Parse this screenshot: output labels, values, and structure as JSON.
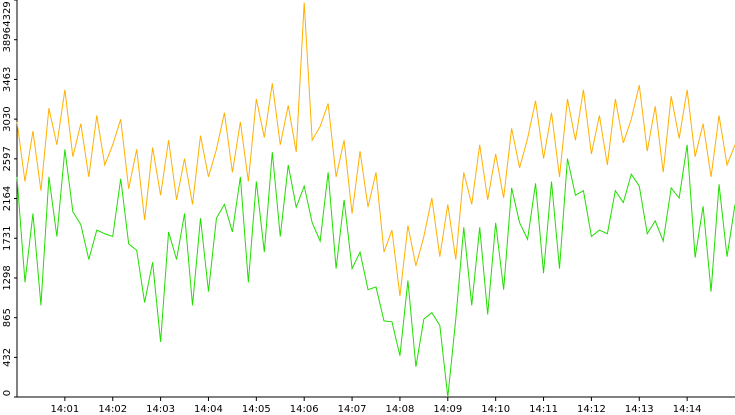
{
  "chart_data": {
    "type": "line",
    "categories": [
      null,
      null,
      null,
      null,
      null,
      null,
      "14:01",
      null,
      null,
      null,
      null,
      null,
      "14:02",
      null,
      null,
      null,
      null,
      null,
      "14:03",
      null,
      null,
      null,
      null,
      null,
      "14:04",
      null,
      null,
      null,
      null,
      null,
      "14:05",
      null,
      null,
      null,
      null,
      null,
      "14:06",
      null,
      null,
      null,
      null,
      null,
      "14:07",
      null,
      null,
      null,
      null,
      null,
      "14:08",
      null,
      null,
      null,
      null,
      null,
      "14:09",
      null,
      null,
      null,
      null,
      null,
      "14:10",
      null,
      null,
      null,
      null,
      null,
      "14:11",
      null,
      null,
      null,
      null,
      null,
      "14:12",
      null,
      null,
      null,
      null,
      null,
      "14:13",
      null,
      null,
      null,
      null,
      null,
      "14:14",
      null,
      null,
      null,
      null,
      null,
      null
    ],
    "series": [
      {
        "color": "#ffb000",
        "values": [
          3000,
          2350,
          2900,
          2250,
          3150,
          2750,
          3350,
          2620,
          2980,
          2400,
          3070,
          2530,
          2750,
          3030,
          2270,
          2700,
          1930,
          2720,
          2200,
          2800,
          2150,
          2600,
          2100,
          2850,
          2400,
          2700,
          3100,
          2450,
          3000,
          2350,
          3250,
          2830,
          3420,
          2750,
          3180,
          2670,
          4300,
          2800,
          2950,
          3200,
          2400,
          2800,
          2000,
          2680,
          2070,
          2450,
          1580,
          1820,
          1100,
          1870,
          1430,
          1750,
          2170,
          1530,
          2100,
          1500,
          2450,
          2100,
          2750,
          2150,
          2650,
          2170,
          2930,
          2500,
          2820,
          3230,
          2600,
          3100,
          2400,
          3250,
          2800,
          3350,
          2650,
          3070,
          2530,
          3250,
          2770,
          3030,
          3400,
          2680,
          3170,
          2450,
          3280,
          2820,
          3350,
          2620,
          2980,
          2400,
          3070,
          2530,
          2750
        ]
      },
      {
        "color": "#22dd00",
        "values": [
          2400,
          1250,
          2000,
          1000,
          2400,
          1750,
          2700,
          2020,
          1880,
          1500,
          1820,
          1780,
          1750,
          2380,
          1670,
          1600,
          1030,
          1470,
          600,
          1800,
          1500,
          2000,
          1000,
          1950,
          1150,
          1950,
          2100,
          1800,
          2400,
          1250,
          2350,
          1580,
          2670,
          1750,
          2530,
          2070,
          2300,
          1900,
          1700,
          2450,
          1400,
          2150,
          1400,
          1580,
          1170,
          1200,
          830,
          820,
          450,
          1270,
          330,
          850,
          920,
          780,
          0,
          850,
          1850,
          1000,
          1850,
          900,
          1900,
          1170,
          2280,
          1900,
          1720,
          2330,
          1350,
          2350,
          1400,
          2600,
          2200,
          2250,
          1750,
          1820,
          1780,
          2250,
          2120,
          2430,
          2300,
          1780,
          1920,
          1700,
          2280,
          2170,
          2750,
          1520,
          2080,
          1150,
          2320,
          1530,
          2100
        ]
      }
    ],
    "ylim": [
      0,
      4329
    ],
    "yticks": [
      0,
      432,
      865,
      1298,
      1731,
      2164,
      2597,
      3030,
      3463,
      3896,
      4329
    ]
  }
}
